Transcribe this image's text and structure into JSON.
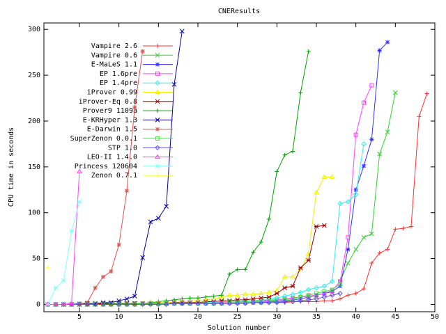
{
  "chart_data": {
    "type": "line",
    "title": "CNEResults",
    "x_label": "Solution number",
    "y_label": "CPU time in seconds",
    "xlim": [
      0.5,
      50
    ],
    "ylim": [
      -8,
      307
    ],
    "xticks": [
      5,
      10,
      15,
      20,
      25,
      30,
      35,
      40,
      45,
      50
    ],
    "yticks": [
      0,
      50,
      100,
      150,
      200,
      250,
      300
    ],
    "legend": "upper-left",
    "series": [
      {
        "name": "Vampire 2.6",
        "color": "#ff3030",
        "x": [
          1,
          2,
          3,
          4,
          5,
          6,
          7,
          8,
          9,
          10,
          11,
          12,
          13,
          14,
          15,
          16,
          17,
          18,
          19,
          20,
          21,
          22,
          23,
          24,
          25,
          26,
          27,
          28,
          29,
          30,
          31,
          32,
          33,
          34,
          35,
          36,
          37,
          38,
          39,
          40,
          41,
          42,
          43,
          44,
          45,
          46,
          47,
          48,
          49
        ],
        "values": [
          0,
          0,
          0,
          0,
          0,
          0,
          0,
          0,
          0,
          0,
          0,
          0,
          0,
          0,
          1,
          1,
          1,
          1,
          1,
          1,
          1,
          1,
          1,
          1,
          1,
          2,
          2,
          2,
          2,
          2,
          2,
          3,
          3,
          3,
          3,
          4,
          4,
          6,
          10,
          12,
          17,
          45,
          56,
          60,
          82,
          83,
          85,
          205,
          230
        ]
      },
      {
        "name": "Vampire 0.6",
        "color": "#30d030",
        "x": [
          1,
          2,
          3,
          4,
          5,
          6,
          7,
          8,
          9,
          10,
          11,
          12,
          13,
          14,
          15,
          16,
          17,
          18,
          19,
          20,
          21,
          22,
          23,
          24,
          25,
          26,
          27,
          28,
          29,
          30,
          31,
          32,
          33,
          34,
          35,
          36,
          37,
          38,
          39,
          40,
          41,
          42,
          43,
          44,
          45
        ],
        "values": [
          0,
          0,
          0,
          0,
          0,
          0,
          0,
          0,
          0,
          1,
          1,
          1,
          1,
          1,
          1,
          1,
          1,
          2,
          2,
          2,
          2,
          2,
          3,
          3,
          3,
          3,
          4,
          4,
          5,
          5,
          6,
          7,
          8,
          9,
          10,
          12,
          15,
          25,
          45,
          60,
          73,
          77,
          164,
          188,
          231
        ]
      },
      {
        "name": "E-MaLeS 1.1",
        "color": "#3030ff",
        "x": [
          1,
          2,
          3,
          4,
          5,
          6,
          7,
          8,
          9,
          10,
          11,
          12,
          13,
          14,
          15,
          16,
          17,
          18,
          19,
          20,
          21,
          22,
          23,
          24,
          25,
          26,
          27,
          28,
          29,
          30,
          31,
          32,
          33,
          34,
          35,
          36,
          37,
          38,
          39,
          40,
          41,
          42,
          43,
          44
        ],
        "values": [
          0,
          0,
          0,
          0,
          1,
          1,
          1,
          1,
          1,
          1,
          1,
          1,
          1,
          1,
          1,
          1,
          1,
          1,
          1,
          1,
          1,
          1,
          1,
          2,
          2,
          2,
          2,
          2,
          3,
          3,
          4,
          5,
          6,
          8,
          10,
          12,
          14,
          20,
          60,
          125,
          151,
          180,
          277,
          286
        ]
      },
      {
        "name": "EP 1.6pre",
        "color": "#ff40ff",
        "x": [
          1,
          2,
          3,
          4,
          5,
          6,
          7,
          8,
          9,
          10,
          11,
          12,
          13,
          14,
          15,
          16,
          17,
          18,
          19,
          20,
          21,
          22,
          23,
          24,
          25,
          26,
          27,
          28,
          29,
          30,
          31,
          32,
          33,
          34,
          35,
          36,
          37,
          38,
          39,
          40,
          41,
          42
        ],
        "values": [
          0,
          0,
          0,
          0,
          0,
          0,
          0,
          0,
          1,
          1,
          1,
          1,
          1,
          1,
          1,
          1,
          1,
          1,
          1,
          1,
          1,
          2,
          2,
          2,
          2,
          2,
          3,
          3,
          4,
          5,
          6,
          7,
          8,
          9,
          10,
          12,
          15,
          25,
          73,
          185,
          220,
          239
        ]
      },
      {
        "name": "EP 1.4pre",
        "color": "#30eeee",
        "x": [
          1,
          2,
          3,
          4,
          5,
          6,
          7,
          8,
          9,
          10,
          11,
          12,
          13,
          14,
          15,
          16,
          17,
          18,
          19,
          20,
          21,
          22,
          23,
          24,
          25,
          26,
          27,
          28,
          29,
          30,
          31,
          32,
          33,
          34,
          35,
          36,
          37,
          38,
          39,
          40,
          41
        ],
        "values": [
          0,
          0,
          0,
          0,
          0,
          0,
          0,
          1,
          1,
          1,
          1,
          1,
          1,
          1,
          1,
          1,
          1,
          1,
          2,
          2,
          2,
          2,
          3,
          3,
          3,
          4,
          4,
          5,
          6,
          7,
          9,
          11,
          13,
          16,
          18,
          20,
          25,
          110,
          112,
          120,
          175
        ]
      },
      {
        "name": "iProver 0.99",
        "color": "#f0f000",
        "x": [
          1,
          2,
          3,
          4,
          5,
          6,
          7,
          8,
          9,
          10,
          11,
          12,
          13,
          14,
          15,
          16,
          17,
          18,
          19,
          20,
          21,
          22,
          23,
          24,
          25,
          26,
          27,
          28,
          29,
          30,
          31,
          32,
          33,
          34,
          35,
          36,
          37
        ],
        "values": [
          0,
          0,
          0,
          0,
          0,
          0,
          1,
          1,
          1,
          1,
          1,
          1,
          1,
          2,
          2,
          2,
          2,
          3,
          3,
          4,
          5,
          6,
          8,
          10,
          10,
          11,
          11,
          12,
          13,
          15,
          30,
          30,
          38,
          55,
          122,
          139,
          139
        ]
      },
      {
        "name": "iProver-Eq 0.8",
        "color": "#a00000",
        "x": [
          1,
          2,
          3,
          4,
          5,
          6,
          7,
          8,
          9,
          10,
          11,
          12,
          13,
          14,
          15,
          16,
          17,
          18,
          19,
          20,
          21,
          22,
          23,
          24,
          25,
          26,
          27,
          28,
          29,
          30,
          31,
          32,
          33,
          34,
          35,
          36
        ],
        "values": [
          0,
          0,
          0,
          0,
          0,
          0,
          0,
          1,
          1,
          1,
          1,
          1,
          1,
          1,
          1,
          1,
          2,
          2,
          2,
          2,
          3,
          3,
          4,
          4,
          5,
          5,
          6,
          7,
          8,
          12,
          18,
          20,
          40,
          48,
          85,
          86
        ]
      },
      {
        "name": "Prover9 1109a",
        "color": "#00a000",
        "x": [
          1,
          2,
          3,
          4,
          5,
          6,
          7,
          8,
          9,
          10,
          11,
          12,
          13,
          14,
          15,
          16,
          17,
          18,
          19,
          20,
          21,
          22,
          23,
          24,
          25,
          26,
          27,
          28,
          29,
          30,
          31,
          32,
          33,
          34
        ],
        "values": [
          0,
          0,
          0,
          0,
          0,
          0,
          0,
          0,
          1,
          1,
          1,
          1,
          1,
          2,
          3,
          4,
          5,
          6,
          7,
          7,
          8,
          9,
          10,
          33,
          38,
          38,
          57,
          68,
          93,
          145,
          163,
          167,
          231,
          276
        ]
      },
      {
        "name": "E-KRHyper 1.3",
        "color": "#0000a0",
        "x": [
          1,
          2,
          3,
          4,
          5,
          6,
          7,
          8,
          9,
          10,
          11,
          12,
          13,
          14,
          15,
          16,
          17,
          18
        ],
        "values": [
          0,
          0,
          0,
          0,
          0,
          1,
          1,
          2,
          2,
          4,
          6,
          9,
          51,
          90,
          94,
          107,
          240,
          298
        ]
      },
      {
        "name": "E-Darwin 1.5",
        "color": "#e05050",
        "x": [
          1,
          2,
          3,
          4,
          5,
          6,
          7,
          8,
          9,
          10,
          11,
          12,
          13
        ],
        "values": [
          0,
          0,
          0,
          0,
          0,
          2,
          18,
          30,
          36,
          65,
          124,
          215,
          276
        ]
      },
      {
        "name": "SuperZenon 0.0.1",
        "color": "#50e050",
        "x": [
          1,
          2,
          3,
          4,
          5,
          6,
          7,
          8,
          9,
          10,
          11,
          12,
          13,
          14,
          15,
          16,
          17,
          18,
          19,
          20,
          21,
          22,
          23,
          24,
          25,
          26,
          27,
          28,
          29,
          30,
          31,
          32,
          33,
          34,
          35,
          36,
          37,
          38
        ],
        "values": [
          0,
          0,
          0,
          0,
          0,
          0,
          0,
          0,
          0,
          0,
          0,
          0,
          1,
          1,
          1,
          1,
          1,
          1,
          1,
          1,
          1,
          1,
          1,
          2,
          2,
          2,
          2,
          3,
          3,
          4,
          5,
          6,
          8,
          10,
          12,
          14,
          16,
          22
        ]
      },
      {
        "name": "STP 1.0",
        "color": "#6050e0",
        "x": [
          1,
          2,
          3,
          4,
          5,
          6,
          7,
          8,
          9,
          10,
          11,
          12,
          13,
          14,
          15,
          16,
          17,
          18,
          19,
          20,
          21,
          22,
          23,
          24,
          25,
          26,
          27,
          28,
          29,
          30,
          31,
          32,
          33,
          34,
          35,
          36,
          37,
          38
        ],
        "values": [
          0,
          0,
          0,
          0,
          0,
          0,
          0,
          0,
          0,
          0,
          0,
          0,
          0,
          0,
          0,
          0,
          1,
          1,
          1,
          1,
          1,
          1,
          1,
          1,
          1,
          1,
          2,
          2,
          2,
          2,
          3,
          3,
          4,
          5,
          6,
          8,
          10,
          12
        ]
      },
      {
        "name": "LEO-II 1.4.0",
        "color": "#ff40ff",
        "x": [
          1,
          2,
          3,
          4,
          5
        ],
        "values": [
          0,
          0,
          0,
          1,
          145
        ]
      },
      {
        "name": "Princess 120604",
        "color": "#80ffff",
        "x": [
          1,
          2,
          3,
          4,
          5
        ],
        "values": [
          0,
          18,
          26,
          80,
          112
        ]
      },
      {
        "name": "Zenon 0.7.1",
        "color": "#ffff40",
        "x": [
          1
        ],
        "values": [
          40
        ]
      }
    ]
  }
}
